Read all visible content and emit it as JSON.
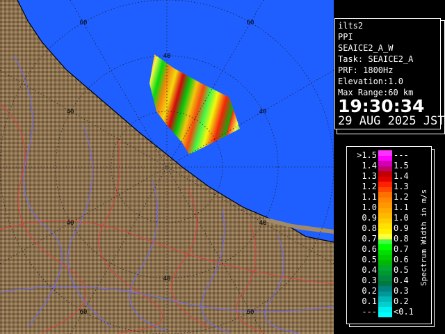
{
  "info": {
    "radar": "ilts2",
    "scan_type": "PPI",
    "product": "SEAICE2_A_W",
    "task": "Task: SEAICE2_A",
    "prf": "PRF: 1800Hz",
    "elevation": "Elevation:1.0",
    "max_range": "Max Range:60 km",
    "time": "19:30:34",
    "date": "29 AUG 2025 JST"
  },
  "map": {
    "sea_color": "#1f5fff",
    "land_color": "#8a7050",
    "ring_labels": [
      "40",
      "40",
      "40",
      "40",
      "40",
      "40",
      "60",
      "60",
      "60",
      "60"
    ]
  },
  "legend": {
    "unit_label": "Spectrum Width in m/s",
    "rows": [
      {
        "left": ">1.5",
        "right": "---",
        "colors": [
          "#ff30ff",
          "#ff00ff"
        ]
      },
      {
        "left": "1.4",
        "right": "1.5",
        "colors": [
          "#d000b0",
          "#c00070"
        ]
      },
      {
        "left": "1.3",
        "right": "1.4",
        "colors": [
          "#c00000",
          "#e00000"
        ]
      },
      {
        "left": "1.2",
        "right": "1.3",
        "colors": [
          "#ff2000",
          "#ff4800"
        ]
      },
      {
        "left": "1.1",
        "right": "1.2",
        "colors": [
          "#ff7000",
          "#ff8800"
        ]
      },
      {
        "left": "1.0",
        "right": "1.1",
        "colors": [
          "#ff9800",
          "#ffa800"
        ]
      },
      {
        "left": "0.9",
        "right": "1.0",
        "colors": [
          "#ffb800",
          "#ffcc00"
        ]
      },
      {
        "left": "0.8",
        "right": "0.9",
        "colors": [
          "#ffe000",
          "#fff000"
        ]
      },
      {
        "left": "0.7",
        "right": "0.8",
        "colors": [
          "#ffff40",
          "#40ff40"
        ]
      },
      {
        "left": "0.6",
        "right": "0.7",
        "colors": [
          "#00ff00",
          "#00e000"
        ]
      },
      {
        "left": "0.5",
        "right": "0.6",
        "colors": [
          "#00cc00",
          "#00b800"
        ]
      },
      {
        "left": "0.4",
        "right": "0.5",
        "colors": [
          "#00a830",
          "#009830"
        ]
      },
      {
        "left": "0.3",
        "right": "0.4",
        "colors": [
          "#008840",
          "#007840"
        ]
      },
      {
        "left": "0.2",
        "right": "0.3",
        "colors": [
          "#008080",
          "#009898"
        ]
      },
      {
        "left": "0.1",
        "right": "0.2",
        "colors": [
          "#00b8b8",
          "#00d0d0"
        ]
      },
      {
        "left": "---",
        "right": "<0.1",
        "colors": [
          "#00f0f0",
          "#00ffff"
        ]
      }
    ]
  }
}
